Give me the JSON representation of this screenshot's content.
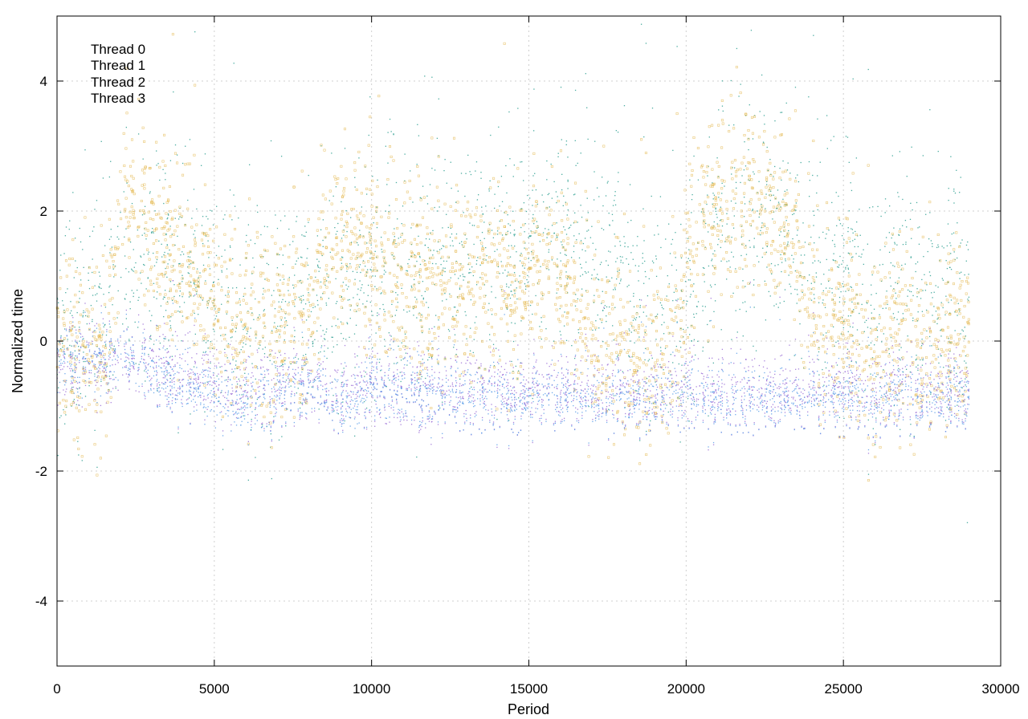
{
  "chart_data": {
    "type": "scatter",
    "title": "",
    "xlabel": "Period",
    "ylabel": "Normalized time",
    "xlim": [
      0,
      30000
    ],
    "ylim": [
      -5,
      5
    ],
    "xticks": [
      0,
      5000,
      10000,
      15000,
      20000,
      25000,
      30000
    ],
    "xtick_labels": [
      "0",
      "5000",
      "10000",
      "15000",
      "20000",
      "25000",
      "30000"
    ],
    "yticks": [
      -4,
      -2,
      0,
      2,
      4
    ],
    "ytick_labels": [
      "-4",
      "-2",
      "0",
      "2",
      "4"
    ],
    "grid": true,
    "legend_position": "top-left",
    "x_max_data": 29000,
    "series": [
      {
        "name": "Thread 0",
        "color": "#9b6fd6",
        "marker": "dot",
        "profile": [
          [
            0,
            -0.4
          ],
          [
            1000,
            -0.3
          ],
          [
            2000,
            -0.4
          ],
          [
            3000,
            -0.3
          ],
          [
            4000,
            -0.6
          ],
          [
            5000,
            -0.6
          ],
          [
            6000,
            -0.7
          ],
          [
            7000,
            -0.7
          ],
          [
            8000,
            -0.7
          ],
          [
            9000,
            -0.8
          ],
          [
            10000,
            -0.7
          ],
          [
            12000,
            -0.8
          ],
          [
            14000,
            -0.8
          ],
          [
            16000,
            -0.8
          ],
          [
            18000,
            -0.8
          ],
          [
            20000,
            -0.8
          ],
          [
            22000,
            -0.8
          ],
          [
            24000,
            -0.8
          ],
          [
            26000,
            -0.8
          ],
          [
            29000,
            -0.8
          ]
        ],
        "spread": 0.3
      },
      {
        "name": "Thread 1",
        "color": "#2a9d8f",
        "marker": "dot",
        "profile": [
          [
            0,
            0.0
          ],
          [
            2000,
            0.6
          ],
          [
            3000,
            1.2
          ],
          [
            4500,
            0.8
          ],
          [
            6000,
            0.4
          ],
          [
            8000,
            0.4
          ],
          [
            9000,
            0.8
          ],
          [
            11000,
            1.0
          ],
          [
            13000,
            1.2
          ],
          [
            15000,
            1.4
          ],
          [
            17000,
            1.4
          ],
          [
            18500,
            0.6
          ],
          [
            20000,
            0.2
          ],
          [
            21000,
            2.0
          ],
          [
            23000,
            1.8
          ],
          [
            24000,
            1.0
          ],
          [
            26000,
            0.7
          ],
          [
            29000,
            0.5
          ]
        ],
        "spread": 0.9
      },
      {
        "name": "Thread 2",
        "color": "#e1b03d",
        "marker": "square",
        "profile": [
          [
            0,
            0.0
          ],
          [
            1500,
            -0.3
          ],
          [
            2200,
            2.2
          ],
          [
            3500,
            1.5
          ],
          [
            4500,
            0.8
          ],
          [
            6000,
            0.4
          ],
          [
            8000,
            0.2
          ],
          [
            8700,
            1.8
          ],
          [
            10000,
            1.2
          ],
          [
            12000,
            0.8
          ],
          [
            14000,
            0.9
          ],
          [
            16000,
            1.0
          ],
          [
            17000,
            0.0
          ],
          [
            18000,
            -0.2
          ],
          [
            19500,
            -0.3
          ],
          [
            20500,
            2.0
          ],
          [
            22000,
            2.3
          ],
          [
            23500,
            1.6
          ],
          [
            24000,
            0.2
          ],
          [
            26000,
            0.0
          ],
          [
            28000,
            -0.2
          ],
          [
            29000,
            0.2
          ]
        ],
        "spread": 0.7
      },
      {
        "name": "Thread 3",
        "color": "#5b9de8",
        "marker": "dot",
        "profile": [
          [
            0,
            -0.3
          ],
          [
            1000,
            -0.3
          ],
          [
            2500,
            -0.3
          ],
          [
            4000,
            -0.7
          ],
          [
            6000,
            -0.9
          ],
          [
            8000,
            -0.7
          ],
          [
            9500,
            -1.0
          ],
          [
            10000,
            -0.7
          ],
          [
            13000,
            -0.9
          ],
          [
            16000,
            -0.9
          ],
          [
            20000,
            -0.9
          ],
          [
            24000,
            -0.9
          ],
          [
            26000,
            -0.9
          ],
          [
            29000,
            -0.9
          ]
        ],
        "spread": 0.25
      }
    ]
  }
}
